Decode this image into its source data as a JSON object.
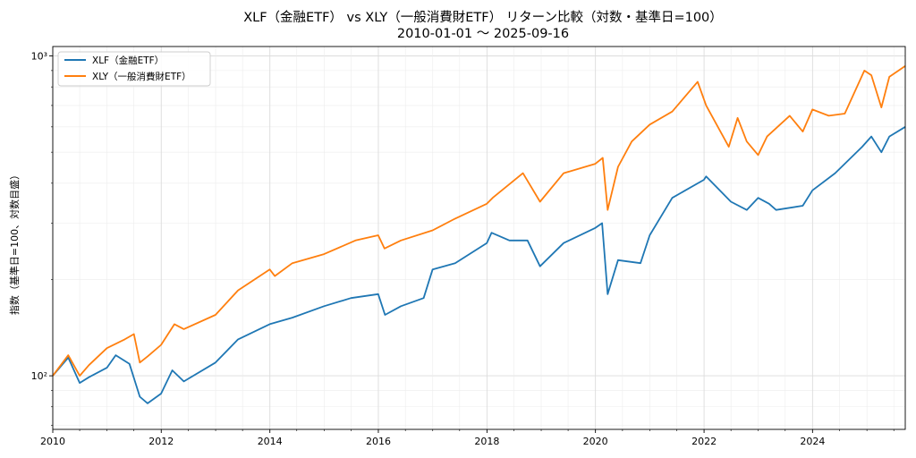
{
  "chart_data": {
    "type": "line",
    "title": "XLF（金融ETF） vs XLY（一般消費財ETF） リターン比較（対数・基準日=100）",
    "subtitle": "2010-01-01 〜 2025-09-16",
    "xlabel": "",
    "ylabel": "指数（基準日=100、対数目盛）",
    "y_scale": "log",
    "xlim": [
      "2010-01-01",
      "2025-09-16"
    ],
    "ylim": [
      68,
      1070
    ],
    "x_ticks": [
      "2010",
      "2012",
      "2014",
      "2016",
      "2018",
      "2020",
      "2022",
      "2024"
    ],
    "y_ticks": [
      100,
      1000
    ],
    "y_tick_labels": [
      "10²",
      "10³"
    ],
    "grid": true,
    "legend_position": "top-left",
    "series": [
      {
        "name": "XLF（金融ETF）",
        "color": "#1f77b4",
        "points": [
          [
            "2010-01-01",
            100
          ],
          [
            "2010-04-15",
            114
          ],
          [
            "2010-07-01",
            95
          ],
          [
            "2010-09-01",
            99
          ],
          [
            "2010-12-31",
            106
          ],
          [
            "2011-03-01",
            116
          ],
          [
            "2011-06-01",
            109
          ],
          [
            "2011-08-10",
            86
          ],
          [
            "2011-10-01",
            82
          ],
          [
            "2011-12-31",
            88
          ],
          [
            "2012-03-15",
            104
          ],
          [
            "2012-06-01",
            96
          ],
          [
            "2012-12-31",
            110
          ],
          [
            "2013-06-01",
            130
          ],
          [
            "2013-12-31",
            145
          ],
          [
            "2014-06-01",
            152
          ],
          [
            "2014-12-31",
            165
          ],
          [
            "2015-07-01",
            175
          ],
          [
            "2015-12-31",
            180
          ],
          [
            "2016-02-15",
            155
          ],
          [
            "2016-06-01",
            165
          ],
          [
            "2016-11-01",
            175
          ],
          [
            "2016-12-31",
            215
          ],
          [
            "2017-06-01",
            225
          ],
          [
            "2017-12-31",
            260
          ],
          [
            "2018-02-01",
            280
          ],
          [
            "2018-06-01",
            265
          ],
          [
            "2018-10-01",
            265
          ],
          [
            "2018-12-24",
            220
          ],
          [
            "2019-06-01",
            260
          ],
          [
            "2019-12-31",
            290
          ],
          [
            "2020-02-15",
            300
          ],
          [
            "2020-03-23",
            180
          ],
          [
            "2020-06-01",
            230
          ],
          [
            "2020-10-30",
            225
          ],
          [
            "2020-12-31",
            275
          ],
          [
            "2021-06-01",
            360
          ],
          [
            "2021-12-31",
            410
          ],
          [
            "2022-01-15",
            420
          ],
          [
            "2022-07-01",
            350
          ],
          [
            "2022-10-15",
            330
          ],
          [
            "2022-12-31",
            360
          ],
          [
            "2023-03-15",
            345
          ],
          [
            "2023-05-01",
            330
          ],
          [
            "2023-10-27",
            340
          ],
          [
            "2023-12-31",
            380
          ],
          [
            "2024-06-01",
            430
          ],
          [
            "2024-11-30",
            520
          ],
          [
            "2025-01-31",
            560
          ],
          [
            "2025-04-08",
            500
          ],
          [
            "2025-06-01",
            560
          ],
          [
            "2025-09-16",
            600
          ]
        ]
      },
      {
        "name": "XLY（一般消費財ETF）",
        "color": "#ff7f0e",
        "points": [
          [
            "2010-01-01",
            100
          ],
          [
            "2010-04-15",
            116
          ],
          [
            "2010-07-01",
            100
          ],
          [
            "2010-09-01",
            108
          ],
          [
            "2010-12-31",
            122
          ],
          [
            "2011-04-30",
            130
          ],
          [
            "2011-07-01",
            135
          ],
          [
            "2011-08-10",
            110
          ],
          [
            "2011-10-01",
            115
          ],
          [
            "2011-12-31",
            125
          ],
          [
            "2012-03-30",
            145
          ],
          [
            "2012-06-01",
            140
          ],
          [
            "2012-12-31",
            155
          ],
          [
            "2013-06-01",
            185
          ],
          [
            "2013-12-31",
            215
          ],
          [
            "2014-02-03",
            205
          ],
          [
            "2014-06-01",
            225
          ],
          [
            "2014-12-31",
            240
          ],
          [
            "2015-07-31",
            265
          ],
          [
            "2015-12-31",
            275
          ],
          [
            "2016-02-11",
            250
          ],
          [
            "2016-06-01",
            265
          ],
          [
            "2016-12-31",
            285
          ],
          [
            "2017-06-01",
            310
          ],
          [
            "2017-12-31",
            345
          ],
          [
            "2018-02-08",
            360
          ],
          [
            "2018-08-31",
            430
          ],
          [
            "2018-12-24",
            350
          ],
          [
            "2019-06-01",
            430
          ],
          [
            "2019-12-31",
            460
          ],
          [
            "2020-02-19",
            480
          ],
          [
            "2020-03-23",
            330
          ],
          [
            "2020-06-01",
            450
          ],
          [
            "2020-09-01",
            540
          ],
          [
            "2020-12-31",
            610
          ],
          [
            "2021-06-01",
            670
          ],
          [
            "2021-11-19",
            830
          ],
          [
            "2022-01-15",
            700
          ],
          [
            "2022-06-16",
            520
          ],
          [
            "2022-08-15",
            640
          ],
          [
            "2022-10-15",
            540
          ],
          [
            "2022-12-31",
            490
          ],
          [
            "2023-03-01",
            560
          ],
          [
            "2023-07-31",
            650
          ],
          [
            "2023-10-27",
            580
          ],
          [
            "2023-12-31",
            680
          ],
          [
            "2024-04-19",
            650
          ],
          [
            "2024-08-05",
            660
          ],
          [
            "2024-12-15",
            900
          ],
          [
            "2025-01-31",
            870
          ],
          [
            "2025-04-08",
            690
          ],
          [
            "2025-06-01",
            860
          ],
          [
            "2025-09-16",
            930
          ]
        ]
      }
    ]
  }
}
